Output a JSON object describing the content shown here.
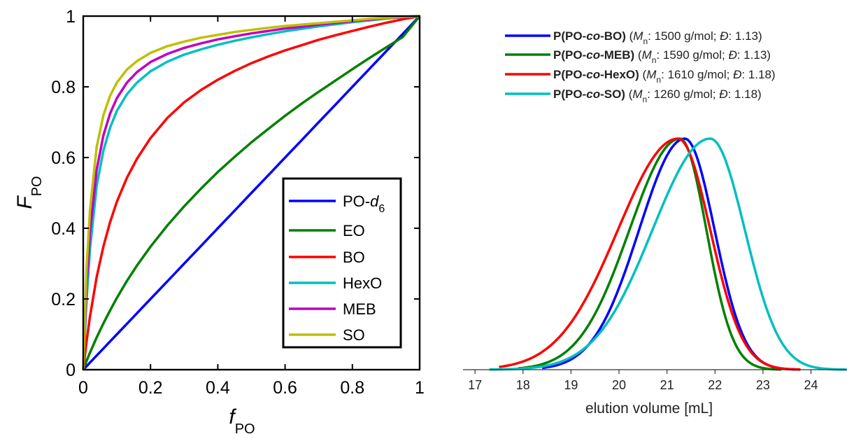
{
  "chart_data": [
    {
      "type": "line",
      "xlabel": "f",
      "xlabel_sub": "PO",
      "ylabel": "F",
      "ylabel_sub": "PO",
      "xlim": [
        0,
        1
      ],
      "ylim": [
        0,
        1
      ],
      "x_ticks": [
        "0",
        "0.2",
        "0.4",
        "0.6",
        "0.8",
        "1"
      ],
      "y_ticks": [
        "0",
        "0.2",
        "0.4",
        "0.6",
        "0.8",
        "1"
      ],
      "grid": false,
      "legend_position": "bottom-right",
      "x": [
        0,
        0.01,
        0.02,
        0.04,
        0.06,
        0.08,
        0.1,
        0.13,
        0.16,
        0.2,
        0.25,
        0.3,
        0.35,
        0.4,
        0.45,
        0.5,
        0.55,
        0.6,
        0.65,
        0.7,
        0.75,
        0.8,
        0.85,
        0.9,
        0.95,
        1
      ],
      "series": [
        {
          "name": "PO-d",
          "name_sub": "6",
          "color": "#0000ff",
          "values": [
            0,
            0.01,
            0.02,
            0.04,
            0.06,
            0.08,
            0.1,
            0.13,
            0.16,
            0.2,
            0.25,
            0.3,
            0.35,
            0.4,
            0.45,
            0.5,
            0.55,
            0.6,
            0.65,
            0.7,
            0.75,
            0.8,
            0.85,
            0.9,
            0.95,
            1
          ]
        },
        {
          "name": "EO",
          "color": "#008000",
          "values": [
            0,
            0.025,
            0.048,
            0.091,
            0.131,
            0.168,
            0.203,
            0.251,
            0.295,
            0.348,
            0.408,
            0.462,
            0.512,
            0.559,
            0.602,
            0.643,
            0.681,
            0.718,
            0.753,
            0.786,
            0.818,
            0.85,
            0.881,
            0.911,
            0.941,
            1
          ]
        },
        {
          "name": "BO",
          "color": "#ff0000",
          "values": [
            0,
            0.08,
            0.15,
            0.262,
            0.349,
            0.418,
            0.475,
            0.543,
            0.597,
            0.655,
            0.712,
            0.756,
            0.791,
            0.82,
            0.845,
            0.867,
            0.886,
            0.903,
            0.918,
            0.933,
            0.946,
            0.958,
            0.97,
            0.981,
            0.991,
            1
          ]
        },
        {
          "name": "HexO",
          "color": "#00bfbf",
          "values": [
            0,
            0.2,
            0.34,
            0.52,
            0.62,
            0.685,
            0.732,
            0.779,
            0.812,
            0.844,
            0.871,
            0.891,
            0.906,
            0.919,
            0.93,
            0.94,
            0.949,
            0.957,
            0.964,
            0.971,
            0.977,
            0.983,
            0.988,
            0.993,
            0.997,
            1
          ]
        },
        {
          "name": "MEB",
          "color": "#bf00bf",
          "values": [
            0,
            0.24,
            0.39,
            0.565,
            0.663,
            0.725,
            0.768,
            0.812,
            0.842,
            0.87,
            0.893,
            0.91,
            0.923,
            0.934,
            0.943,
            0.951,
            0.958,
            0.965,
            0.97,
            0.976,
            0.981,
            0.986,
            0.99,
            0.994,
            0.997,
            1
          ]
        },
        {
          "name": "SO",
          "color": "#bfbf00",
          "values": [
            0,
            0.29,
            0.45,
            0.63,
            0.72,
            0.775,
            0.812,
            0.849,
            0.873,
            0.896,
            0.915,
            0.928,
            0.939,
            0.947,
            0.955,
            0.961,
            0.967,
            0.972,
            0.976,
            0.98,
            0.984,
            0.988,
            0.992,
            0.995,
            0.998,
            1
          ]
        }
      ]
    },
    {
      "type": "line",
      "xlabel": "elution volume [mL]",
      "xlim": [
        16.75,
        24.75
      ],
      "x_ticks": [
        "17",
        "18",
        "19",
        "20",
        "21",
        "22",
        "23",
        "24"
      ],
      "grid": false,
      "legend_position": "top",
      "series": [
        {
          "name": "P(PO-co-BO)",
          "name_parts": [
            "P(PO-",
            "co",
            "-BO)"
          ],
          "mn": "1500 g/mol",
          "d": "1.13",
          "color": "#0000ff",
          "peak_x": 21.37,
          "sigma_left": 0.95,
          "sigma_right": 0.62,
          "start_x": 18.4,
          "end_x": 23.7
        },
        {
          "name": "P(PO-co-MEB)",
          "name_parts": [
            "P(PO-",
            "co",
            "-MEB)"
          ],
          "mn": "1590 g/mol",
          "d": "1.13",
          "color": "#008000",
          "peak_x": 21.27,
          "sigma_left": 1.05,
          "sigma_right": 0.55,
          "start_x": 17.9,
          "end_x": 23.4
        },
        {
          "name": "P(PO-co-HexO)",
          "name_parts": [
            "P(PO-",
            "co",
            "-HexO)"
          ],
          "mn": "1610 g/mol",
          "d": "1.18",
          "color": "#ff0000",
          "peak_x": 21.23,
          "sigma_left": 1.25,
          "sigma_right": 0.67,
          "start_x": 17.5,
          "end_x": 23.8
        },
        {
          "name": "P(PO-co-SO)",
          "name_parts": [
            "P(PO-",
            "co",
            "-SO)"
          ],
          "mn": "1260 g/mol",
          "d": "1.18",
          "color": "#00bfbf",
          "peak_x": 21.9,
          "sigma_left": 1.2,
          "sigma_right": 0.72,
          "start_x": 17.3,
          "end_x": 24.75
        }
      ]
    }
  ]
}
